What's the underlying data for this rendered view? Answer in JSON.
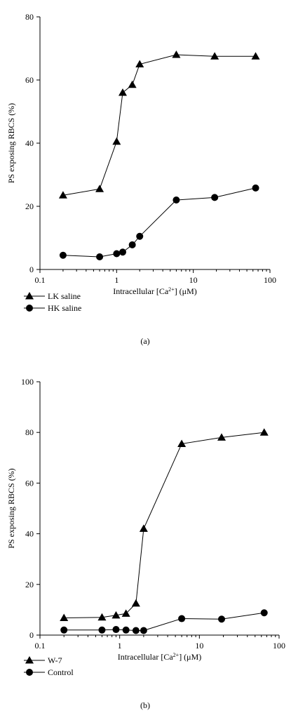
{
  "chart_data": [
    {
      "type": "line",
      "panel_label": "(a)",
      "xlabel": "Intracellular [Ca2+] (μM)",
      "xlabel_parts": {
        "pre": "Intracellular [Ca",
        "sup": "2+",
        "post": "] (μM)"
      },
      "ylabel": "PS exposing RBCS (%)",
      "xscale": "log",
      "xlim": [
        0.1,
        100
      ],
      "ylim": [
        0,
        80
      ],
      "xticks": [
        0.1,
        1,
        10,
        100
      ],
      "xtick_labels": [
        "0.1",
        "1",
        "10",
        "100"
      ],
      "yticks": [
        0,
        20,
        40,
        60,
        80
      ],
      "ytick_labels": [
        "0",
        "20",
        "40",
        "60",
        "80"
      ],
      "grid": false,
      "legend_position": "bottom-left, below axes",
      "series": [
        {
          "name": "LK saline",
          "marker": "triangle",
          "x": [
            0.2,
            0.6,
            1.0,
            1.2,
            1.6,
            2.0,
            6.0,
            19.0,
            65.0
          ],
          "y": [
            23.5,
            25.5,
            40.5,
            56.0,
            58.5,
            65.0,
            68.0,
            67.5,
            67.5
          ]
        },
        {
          "name": "HK saline",
          "marker": "circle",
          "x": [
            0.2,
            0.6,
            1.0,
            1.2,
            1.6,
            2.0,
            6.0,
            19.0,
            65.0
          ],
          "y": [
            4.5,
            4.0,
            5.0,
            5.5,
            7.8,
            10.5,
            22.0,
            22.8,
            25.8
          ]
        }
      ]
    },
    {
      "type": "line",
      "panel_label": "(b)",
      "xlabel": "Intracellular [Ca2+] (μM)",
      "xlabel_parts": {
        "pre": "Intracellular [Ca",
        "sup": "2+",
        "post": "] (μM)"
      },
      "ylabel": "PS exposing RBCS (%)",
      "xscale": "log",
      "xlim": [
        0.1,
        100
      ],
      "ylim": [
        0,
        100
      ],
      "xticks": [
        0.1,
        1,
        10,
        100
      ],
      "xtick_labels": [
        "0.1",
        "1",
        "10",
        "100"
      ],
      "yticks": [
        0,
        20,
        40,
        60,
        80,
        100
      ],
      "ytick_labels": [
        "0",
        "20",
        "40",
        "60",
        "80",
        "100"
      ],
      "grid": false,
      "legend_position": "bottom-left, below axes",
      "series": [
        {
          "name": "W-7",
          "marker": "triangle",
          "x": [
            0.2,
            0.6,
            0.9,
            1.2,
            1.6,
            2.0,
            6.0,
            19.0,
            65.0
          ],
          "y": [
            6.8,
            7.0,
            7.8,
            8.5,
            12.5,
            42.0,
            75.5,
            78.0,
            80.0
          ]
        },
        {
          "name": "Control",
          "marker": "circle",
          "x": [
            0.2,
            0.6,
            0.9,
            1.2,
            1.6,
            2.0,
            6.0,
            19.0,
            65.0
          ],
          "y": [
            2.0,
            2.0,
            2.2,
            2.0,
            1.8,
            1.8,
            6.5,
            6.3,
            8.8
          ]
        }
      ]
    }
  ]
}
